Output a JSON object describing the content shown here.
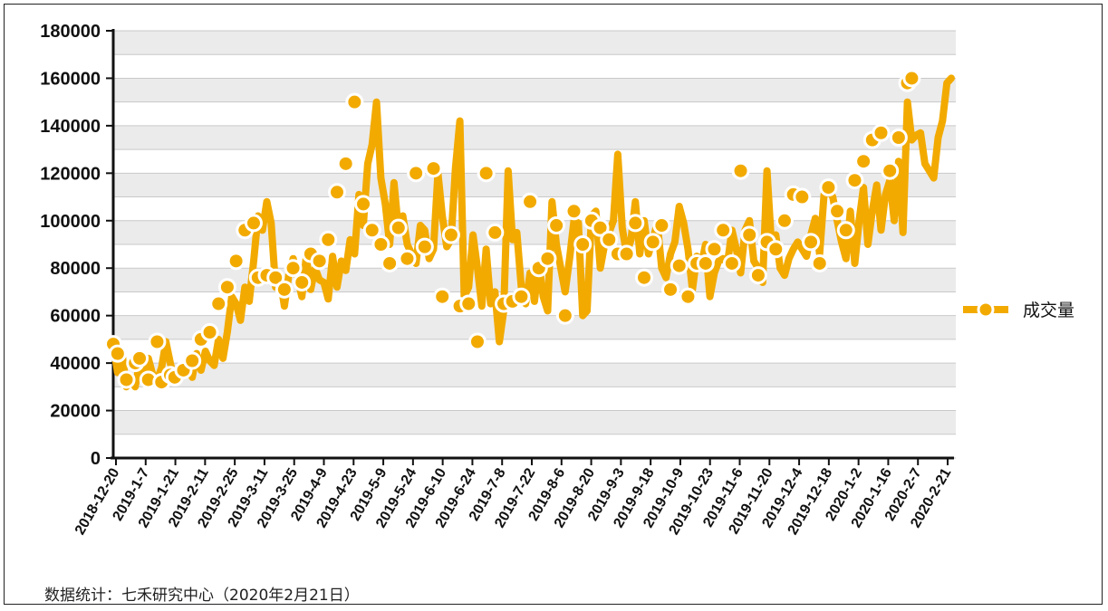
{
  "chart_data": {
    "type": "line",
    "title": "",
    "xlabel": "",
    "ylabel": "",
    "ylim": [
      0,
      180000
    ],
    "yticks": [
      0,
      20000,
      40000,
      60000,
      80000,
      100000,
      120000,
      140000,
      160000,
      180000
    ],
    "xticks": [
      "2018-12-20",
      "2019-1-7",
      "2019-1-21",
      "2019-2-11",
      "2019-2-25",
      "2019-3-11",
      "2019-3-25",
      "2019-4-9",
      "2019-4-23",
      "2019-5-9",
      "2019-5-24",
      "2019-6-10",
      "2019-6-24",
      "2019-7-8",
      "2019-7-22",
      "2019-8-6",
      "2019-8-20",
      "2019-9-3",
      "2019-9-18",
      "2019-10-9",
      "2019-10-23",
      "2019-11-6",
      "2019-11-20",
      "2019-12-4",
      "2019-12-18",
      "2020-1-2",
      "2020-1-16",
      "2020-2-7",
      "2020-2-21"
    ],
    "grid": true,
    "legend_position": "right",
    "series": [
      {
        "name": "成交量",
        "color": "#F2AA00",
        "values": [
          48000,
          36000,
          44000,
          30000,
          33000,
          30000,
          40000,
          32000,
          42000,
          35000,
          33000,
          38000,
          49000,
          40000,
          32000,
          36000,
          35000,
          42000,
          34000,
          44000,
          37000,
          45000,
          41000,
          39000,
          50000,
          42000,
          53000,
          68000,
          65000,
          58000,
          72000,
          66000,
          83000,
          102000,
          96000,
          108000,
          99000,
          72000,
          76000,
          64000,
          77000,
          84000,
          76000,
          68000,
          85000,
          71000,
          80000,
          75000,
          74000,
          67000,
          85000,
          72000,
          83000,
          79000,
          92000,
          86000,
          111000,
          98000,
          124000,
          132000,
          150000,
          118000,
          107000,
          90000,
          116000,
          96000,
          102000,
          90000,
          86000,
          82000,
          98000,
          96000,
          84000,
          88000,
          120000,
          102000,
          89000,
          92000,
          122000,
          142000,
          68000,
          72000,
          94000,
          80000,
          64000,
          88000,
          65000,
          70000,
          49000,
          62000,
          121000,
          92000,
          95000,
          72000,
          65000,
          78000,
          66000,
          82000,
          68000,
          62000,
          108000,
          90000,
          80000,
          70000,
          84000,
          100000,
          99000,
          60000,
          62000,
          102000,
          104000,
          80000,
          90000,
          95000,
          100000,
          128000,
          97000,
          86000,
          92000,
          108000,
          86000,
          100000,
          86000,
          92000,
          99000,
          80000,
          76000,
          86000,
          91000,
          106000,
          99000,
          88000,
          71000,
          85000,
          81000,
          90000,
          68000,
          78000,
          83000,
          84000,
          82000,
          96000,
          88000,
          78000,
          96000,
          100000,
          83000,
          80000,
          74000,
          121000,
          91000,
          94000,
          80000,
          77000,
          84000,
          88000,
          91000,
          88000,
          85000,
          94000,
          101000,
          86000,
          111000,
          113000,
          110000,
          100000,
          91000,
          84000,
          104000,
          82000,
          100000,
          114000,
          90000,
          104000,
          115000,
          96000,
          111000,
          117000,
          100000,
          125000,
          95000,
          150000,
          134000,
          136000,
          137000,
          124000,
          121000,
          118000,
          135000,
          142000,
          158000,
          160000
        ]
      }
    ],
    "markers": [
      [
        0,
        48000
      ],
      [
        1,
        44000
      ],
      [
        3,
        33000
      ],
      [
        5,
        40000
      ],
      [
        6,
        42000
      ],
      [
        8,
        33000
      ],
      [
        10,
        49000
      ],
      [
        11,
        32000
      ],
      [
        13,
        35000
      ],
      [
        14,
        34000
      ],
      [
        16,
        37000
      ],
      [
        18,
        41000
      ],
      [
        20,
        50000
      ],
      [
        22,
        53000
      ],
      [
        24,
        65000
      ],
      [
        26,
        72000
      ],
      [
        28,
        83000
      ],
      [
        30,
        96000
      ],
      [
        32,
        99000
      ],
      [
        33,
        76000
      ],
      [
        35,
        77000
      ],
      [
        37,
        76000
      ],
      [
        39,
        71000
      ],
      [
        41,
        80000
      ],
      [
        43,
        74000
      ],
      [
        45,
        86000
      ],
      [
        47,
        83000
      ],
      [
        49,
        92000
      ],
      [
        51,
        112000
      ],
      [
        53,
        124000
      ],
      [
        55,
        150000
      ],
      [
        57,
        107000
      ],
      [
        59,
        96000
      ],
      [
        61,
        90000
      ],
      [
        63,
        82000
      ],
      [
        65,
        97000
      ],
      [
        67,
        84000
      ],
      [
        69,
        120000
      ],
      [
        71,
        89000
      ],
      [
        73,
        122000
      ],
      [
        75,
        68000
      ],
      [
        77,
        94000
      ],
      [
        79,
        64000
      ],
      [
        81,
        65000
      ],
      [
        83,
        49000
      ],
      [
        85,
        120000
      ],
      [
        87,
        95000
      ],
      [
        89,
        65000
      ],
      [
        91,
        66000
      ],
      [
        93,
        68000
      ],
      [
        95,
        108000
      ],
      [
        97,
        80000
      ],
      [
        99,
        84000
      ],
      [
        101,
        98000
      ],
      [
        103,
        60000
      ],
      [
        105,
        104000
      ],
      [
        107,
        90000
      ],
      [
        109,
        100000
      ],
      [
        111,
        97000
      ],
      [
        113,
        92000
      ],
      [
        115,
        86000
      ],
      [
        117,
        86000
      ],
      [
        119,
        99000
      ],
      [
        121,
        76000
      ],
      [
        123,
        91000
      ],
      [
        125,
        98000
      ],
      [
        127,
        71000
      ],
      [
        129,
        81000
      ],
      [
        131,
        68000
      ],
      [
        133,
        82000
      ],
      [
        135,
        82000
      ],
      [
        137,
        88000
      ],
      [
        139,
        96000
      ],
      [
        141,
        82000
      ],
      [
        143,
        121000
      ],
      [
        145,
        94000
      ],
      [
        147,
        77000
      ],
      [
        149,
        91000
      ],
      [
        151,
        88000
      ],
      [
        153,
        100000
      ],
      [
        155,
        111000
      ],
      [
        157,
        110000
      ],
      [
        159,
        91000
      ],
      [
        161,
        82000
      ],
      [
        163,
        114000
      ],
      [
        165,
        104000
      ],
      [
        167,
        96000
      ],
      [
        169,
        117000
      ],
      [
        171,
        125000
      ],
      [
        173,
        134000
      ],
      [
        175,
        137000
      ],
      [
        177,
        121000
      ],
      [
        179,
        135000
      ],
      [
        181,
        158000
      ],
      [
        182,
        160000
      ]
    ]
  },
  "legend": {
    "label": "成交量"
  },
  "source": "数据统计：七禾研究中心（2020年2月21日）"
}
